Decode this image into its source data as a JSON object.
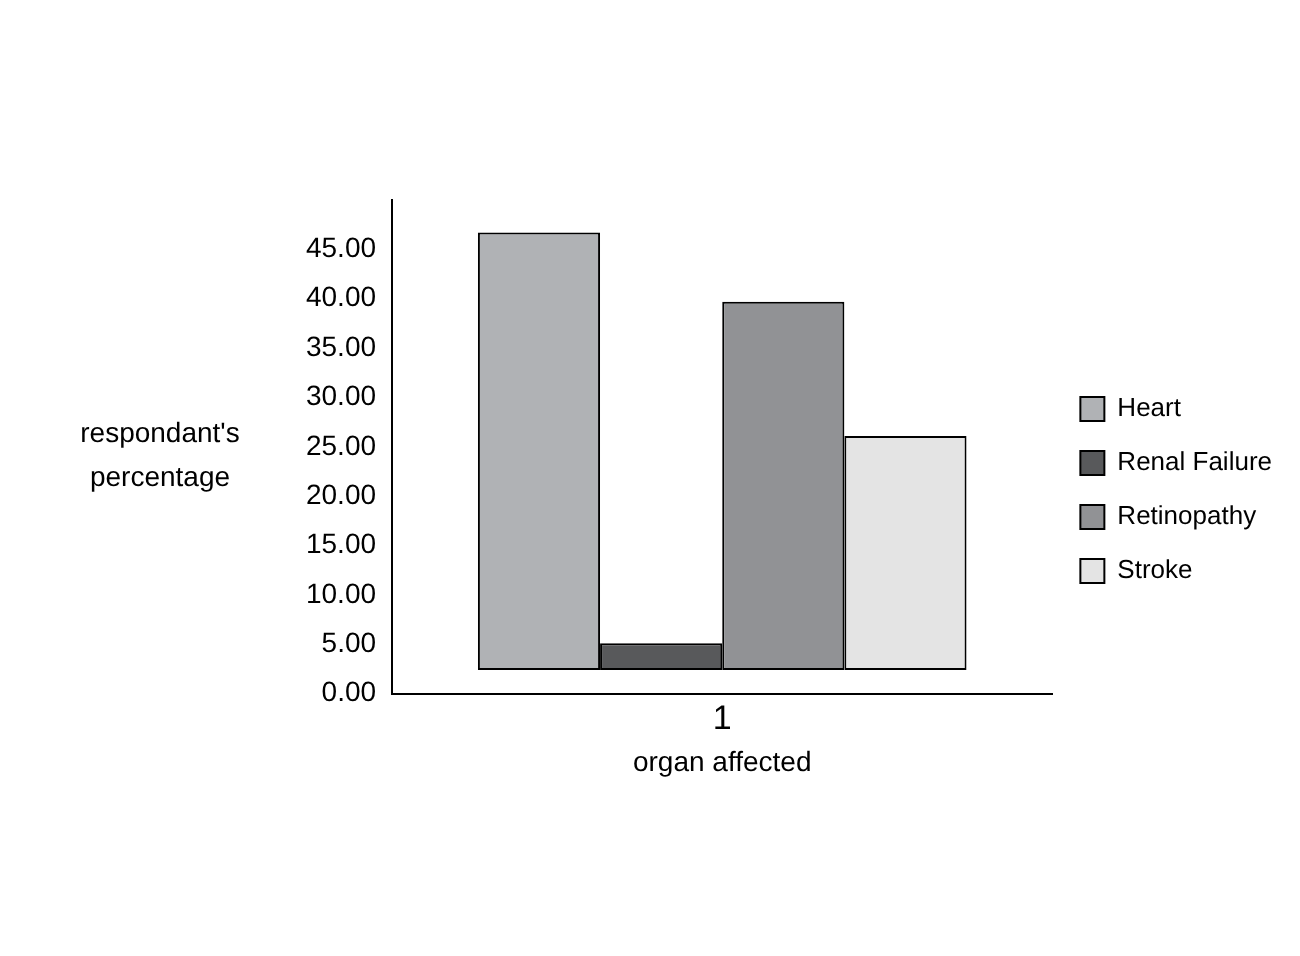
{
  "chart_data": {
    "type": "bar",
    "categories": [
      "1"
    ],
    "xlabel": "organ affected",
    "ylabel": "respondant's percentage",
    "series": [
      {
        "name": "Heart",
        "color": "#b0b2b5",
        "values": [
          44.3
        ],
        "base": [
          2.4
        ]
      },
      {
        "name": "Renal Failure",
        "color": "#58595b",
        "values": [
          2.7
        ],
        "base": [
          2.4
        ]
      },
      {
        "name": "Retinopathy",
        "color": "#919295",
        "values": [
          37.3
        ],
        "base": [
          2.4
        ]
      },
      {
        "name": "Stroke",
        "color": "#e4e4e4",
        "values": [
          23.7
        ],
        "base": [
          2.4
        ]
      }
    ],
    "ylim": [
      0,
      50
    ],
    "yticks": [
      {
        "value": 0,
        "label": "0.00"
      },
      {
        "value": 5,
        "label": "5.00"
      },
      {
        "value": 10,
        "label": "10.00"
      },
      {
        "value": 15,
        "label": "15.00"
      },
      {
        "value": 20,
        "label": "20.00"
      },
      {
        "value": 25,
        "label": "25.00"
      },
      {
        "value": 30,
        "label": "30.00"
      },
      {
        "value": 35,
        "label": "35.00"
      },
      {
        "value": 40,
        "label": "40.00"
      },
      {
        "value": 45,
        "label": "45.00"
      }
    ],
    "grid": false,
    "legend": "right"
  }
}
